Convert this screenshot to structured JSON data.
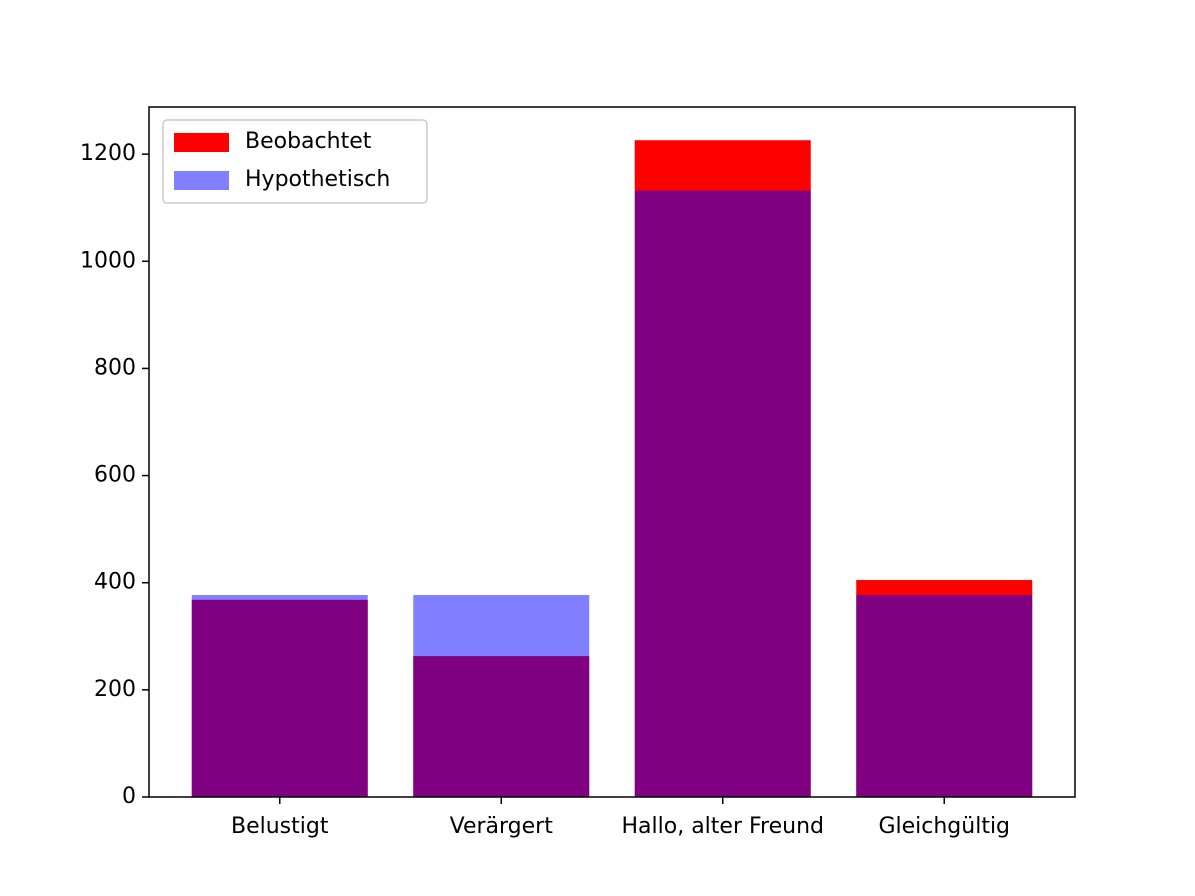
{
  "chart_data": {
    "type": "bar",
    "categories": [
      "Belustigt",
      "Verärgert",
      "Hallo, alter Freund",
      "Gleichgültig"
    ],
    "series": [
      {
        "name": "Beobachtet",
        "color": "#ff0000",
        "alpha": 1,
        "values": [
          368,
          263,
          1226,
          405
        ]
      },
      {
        "name": "Hypothetisch",
        "color": "#0000ff",
        "alpha": 0.5,
        "values": [
          377,
          377,
          1132,
          377
        ]
      }
    ],
    "ylim": [
      0,
      1288
    ],
    "yticks": [
      0,
      200,
      400,
      600,
      800,
      1000,
      1200
    ],
    "legend": "upper left"
  }
}
